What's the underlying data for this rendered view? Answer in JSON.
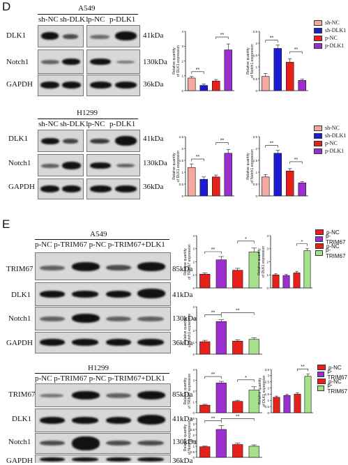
{
  "panel_D": {
    "letter": "D",
    "a549": {
      "cell_line": "A549",
      "lanes_left": [
        "sh-NC",
        "sh-DLK1"
      ],
      "lanes_right": [
        "p-NC",
        "p-DLK1"
      ],
      "rows": [
        {
          "protein": "DLK1",
          "size": "41kDa"
        },
        {
          "protein": "Notch1",
          "size": "130kDa"
        },
        {
          "protein": "GAPDH",
          "size": "36kDa"
        }
      ]
    },
    "h1299": {
      "cell_line": "H1299",
      "lanes_left": [
        "sh-NC",
        "sh-DLK1"
      ],
      "lanes_right": [
        "p-NC",
        "p-DLK1"
      ],
      "rows": [
        {
          "protein": "DLK1",
          "size": "41kDa"
        },
        {
          "protein": "Notch1",
          "size": "130kDa"
        },
        {
          "protein": "GAPDH",
          "size": "36kDa"
        }
      ]
    },
    "legend": [
      "sh-NC",
      "sh-DLK1",
      "p-NC",
      "p-DLK1"
    ]
  },
  "panel_E": {
    "letter": "E",
    "a549": {
      "cell_line": "A549",
      "lane_header": "p-NC  p-TRIM67  p-NC  p-TRIM67+DLK1",
      "rows": [
        {
          "protein": "TRIM67",
          "size": "85kDa"
        },
        {
          "protein": "DLK1",
          "size": "41kDa"
        },
        {
          "protein": "Notch1",
          "size": "130kDa"
        },
        {
          "protein": "GAPDH",
          "size": "36kDa"
        }
      ]
    },
    "h1299": {
      "cell_line": "H1299",
      "lane_header": "p-NC  p-TRIM67  p-NC  p-TRIM67+DLK1",
      "rows": [
        {
          "protein": "TRIM67",
          "size": "85kDa"
        },
        {
          "protein": "DLK1",
          "size": "41kDa"
        },
        {
          "protein": "Notch1",
          "size": "130kDa"
        },
        {
          "protein": "GAPDH",
          "size": "36kDa"
        }
      ]
    },
    "legend": [
      "p-NC",
      "p-TRIM67",
      "p-NC",
      "p-TRIM67"
    ]
  },
  "colors": {
    "sh_nc": "#f4a8a0",
    "sh_dlk1": "#1b1bd6",
    "p_nc": "#e8201c",
    "p_dlk1": "#9b2fd0",
    "p_trim67": "#9b2fd0",
    "p_trim67_dlk1": "#a6e08c"
  },
  "chart_data": [
    {
      "id": "D-A549-DLK1",
      "type": "bar",
      "ylabel": "Relative quantity of DLK1 expression",
      "categories": [
        "sh-NC",
        "sh-DLK1",
        "p-NC",
        "p-DLK1"
      ],
      "values": [
        0.85,
        0.35,
        0.65,
        2.75
      ],
      "errors": [
        0.1,
        0.1,
        0.1,
        0.4
      ],
      "ylim": [
        0,
        4
      ],
      "yticks": [
        0,
        1,
        2,
        3,
        4
      ],
      "significance": [
        {
          "from": 0,
          "to": 1,
          "label": "**"
        },
        {
          "from": 2,
          "to": 3,
          "label": "**"
        }
      ]
    },
    {
      "id": "D-A549-Notch1",
      "type": "bar",
      "ylabel": "Relative quantity of Notch1 expression",
      "categories": [
        "sh-NC",
        "sh-DLK1",
        "p-NC",
        "p-DLK1"
      ],
      "values": [
        0.6,
        1.78,
        1.2,
        0.43
      ],
      "errors": [
        0.12,
        0.14,
        0.15,
        0.05
      ],
      "ylim": [
        0,
        2.5
      ],
      "yticks": [
        0,
        0.5,
        1,
        1.5,
        2,
        2.5
      ],
      "significance": [
        {
          "from": 0,
          "to": 1,
          "label": "**"
        },
        {
          "from": 2,
          "to": 3,
          "label": "**"
        }
      ]
    },
    {
      "id": "D-H1299-DLK1",
      "type": "bar",
      "ylabel": "Relative quantity of DLK1 expression",
      "categories": [
        "sh-NC",
        "sh-DLK1",
        "p-NC",
        "p-DLK1"
      ],
      "values": [
        1.2,
        0.7,
        0.8,
        1.8
      ],
      "errors": [
        0.15,
        0.1,
        0.08,
        0.15
      ],
      "ylim": [
        0,
        2.5
      ],
      "yticks": [
        0,
        0.5,
        1,
        1.5,
        2,
        2.5
      ],
      "significance": [
        {
          "from": 0,
          "to": 1,
          "label": "**"
        },
        {
          "from": 2,
          "to": 3,
          "label": "**"
        }
      ]
    },
    {
      "id": "D-H1299-Notch1",
      "type": "bar",
      "ylabel": "Relative quantity of Notch1 expression",
      "categories": [
        "sh-NC",
        "sh-DLK1",
        "p-NC",
        "p-DLK1"
      ],
      "values": [
        0.8,
        1.8,
        1.05,
        0.55
      ],
      "errors": [
        0.1,
        0.12,
        0.1,
        0.05
      ],
      "ylim": [
        0,
        2.5
      ],
      "yticks": [
        0,
        0.5,
        1,
        1.5,
        2,
        2.5
      ],
      "significance": [
        {
          "from": 0,
          "to": 1,
          "label": "**"
        },
        {
          "from": 2,
          "to": 3,
          "label": "**"
        }
      ]
    },
    {
      "id": "E-A549-TRIM67",
      "type": "bar",
      "ylabel": "Relative quantity of TRIM67 expression",
      "categories": [
        "p-NC",
        "p-TRIM67",
        "p-NC",
        "p-TRIM67"
      ],
      "values": [
        1.05,
        2.15,
        1.35,
        2.75
      ],
      "errors": [
        0.1,
        0.25,
        0.15,
        0.3
      ],
      "ylim": [
        0,
        4
      ],
      "yticks": [
        0,
        1,
        2,
        3,
        4
      ],
      "significance": [
        {
          "from": 0,
          "to": 1,
          "label": "**"
        },
        {
          "from": 2,
          "to": 3,
          "label": "*"
        }
      ]
    },
    {
      "id": "E-A549-DLK1",
      "type": "bar",
      "ylabel": "Relative quantity of DLK1 expression",
      "categories": [
        "p-NC",
        "p-TRIM67",
        "p-NC",
        "p-TRIM67"
      ],
      "values": [
        1.0,
        0.95,
        1.15,
        2.85
      ],
      "errors": [
        0.08,
        0.08,
        0.12,
        0.15
      ],
      "ylim": [
        0,
        4
      ],
      "yticks": [
        0,
        1,
        2,
        3,
        4
      ],
      "significance": [
        {
          "from": 2,
          "to": 3,
          "label": "*"
        }
      ]
    },
    {
      "id": "E-A549-Notch1",
      "type": "bar",
      "ylabel": "Relative quantity of Notch1 expression",
      "categories": [
        "p-NC",
        "p-TRIM67",
        "p-NC",
        "p-TRIM67"
      ],
      "values": [
        1.05,
        2.75,
        1.1,
        1.25
      ],
      "errors": [
        0.12,
        0.15,
        0.12,
        0.12
      ],
      "ylim": [
        0,
        4
      ],
      "yticks": [
        0,
        1,
        2,
        3,
        4
      ],
      "significance": [
        {
          "from": 0,
          "to": 1,
          "label": "**"
        },
        {
          "from": 1,
          "to": 3,
          "label": "**"
        }
      ]
    },
    {
      "id": "E-H1299-TRIM67",
      "type": "bar",
      "ylabel": "Relative quantity of TRIM67 expression",
      "categories": [
        "p-NC",
        "p-TRIM67",
        "p-NC",
        "p-TRIM67"
      ],
      "values": [
        0.7,
        2.75,
        1.05,
        2.1
      ],
      "errors": [
        0.08,
        0.15,
        0.1,
        0.3
      ],
      "ylim": [
        0,
        4
      ],
      "yticks": [
        0,
        1,
        2,
        3,
        4
      ],
      "significance": [
        {
          "from": 0,
          "to": 1,
          "label": "**"
        },
        {
          "from": 2,
          "to": 3,
          "label": "*"
        }
      ]
    },
    {
      "id": "E-H1299-DLK1",
      "type": "bar",
      "ylabel": "Relative quantity of DLK1 expression",
      "categories": [
        "p-NC",
        "p-TRIM67",
        "p-NC",
        "p-TRIM67"
      ],
      "values": [
        1.25,
        1.4,
        1.5,
        2.95
      ],
      "errors": [
        0.1,
        0.08,
        0.1,
        0.2
      ],
      "ylim": [
        0,
        3.5
      ],
      "yticks": [
        0,
        0.5,
        1,
        1.5,
        2,
        2.5,
        3,
        3.5
      ],
      "significance": [
        {
          "from": 2,
          "to": 3,
          "label": "**"
        }
      ]
    },
    {
      "id": "E-H1299-Notch1",
      "type": "bar",
      "ylabel": "Relative quantity of Notch1 expression",
      "categories": [
        "p-NC",
        "p-TRIM67",
        "p-NC",
        "p-TRIM67"
      ],
      "values": [
        0.95,
        2.5,
        1.15,
        1.0
      ],
      "errors": [
        0.06,
        0.35,
        0.12,
        0.12
      ],
      "ylim": [
        0,
        3.5
      ],
      "yticks": [
        0,
        0.5,
        1,
        1.5,
        2,
        2.5,
        3,
        3.5
      ],
      "significance": [
        {
          "from": 0,
          "to": 1,
          "label": "**"
        },
        {
          "from": 1,
          "to": 3,
          "label": "**"
        }
      ]
    }
  ]
}
